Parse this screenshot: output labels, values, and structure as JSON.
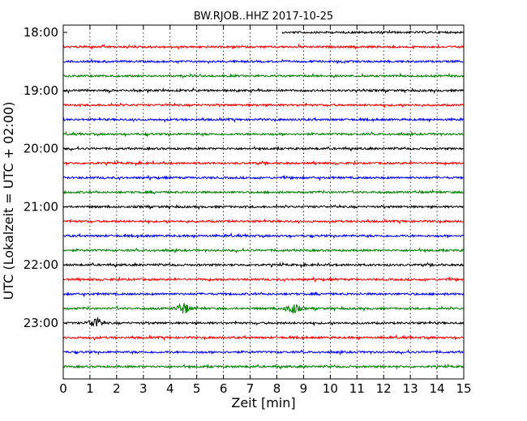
{
  "chart_data": {
    "type": "line",
    "title": "BW.RJOB..HHZ 2017-10-25",
    "xlabel": "Zeit  [min]",
    "ylabel": "UTC (Lokalzeit = UTC + 02:00)",
    "xlim": [
      0,
      15
    ],
    "x_ticks": [
      0,
      1,
      2,
      3,
      4,
      5,
      6,
      7,
      8,
      9,
      10,
      11,
      12,
      13,
      14,
      15
    ],
    "y_tick_labels": [
      "18:00",
      "19:00",
      "20:00",
      "21:00",
      "22:00",
      "23:00"
    ],
    "grid": "vertical dotted",
    "colors": [
      "#000000",
      "#ff0000",
      "#0000ff",
      "#008000"
    ],
    "traces": [
      {
        "start": "18:00",
        "color": "#000000",
        "data_start_min": 8.2
      },
      {
        "start": "18:15",
        "color": "#ff0000"
      },
      {
        "start": "18:30",
        "color": "#0000ff"
      },
      {
        "start": "18:45",
        "color": "#008000"
      },
      {
        "start": "19:00",
        "color": "#000000"
      },
      {
        "start": "19:15",
        "color": "#ff0000"
      },
      {
        "start": "19:30",
        "color": "#0000ff"
      },
      {
        "start": "19:45",
        "color": "#008000"
      },
      {
        "start": "20:00",
        "color": "#000000"
      },
      {
        "start": "20:15",
        "color": "#ff0000"
      },
      {
        "start": "20:30",
        "color": "#0000ff"
      },
      {
        "start": "20:45",
        "color": "#008000"
      },
      {
        "start": "21:00",
        "color": "#000000"
      },
      {
        "start": "21:15",
        "color": "#ff0000"
      },
      {
        "start": "21:30",
        "color": "#0000ff"
      },
      {
        "start": "21:45",
        "color": "#008000"
      },
      {
        "start": "22:00",
        "color": "#000000"
      },
      {
        "start": "22:15",
        "color": "#ff0000"
      },
      {
        "start": "22:30",
        "color": "#0000ff"
      },
      {
        "start": "22:45",
        "color": "#008000",
        "events_min": [
          4.5,
          8.6
        ]
      },
      {
        "start": "23:00",
        "color": "#000000",
        "events_min": [
          1.2
        ]
      },
      {
        "start": "23:15",
        "color": "#ff0000"
      },
      {
        "start": "23:30",
        "color": "#0000ff"
      },
      {
        "start": "23:45",
        "color": "#008000"
      }
    ]
  }
}
